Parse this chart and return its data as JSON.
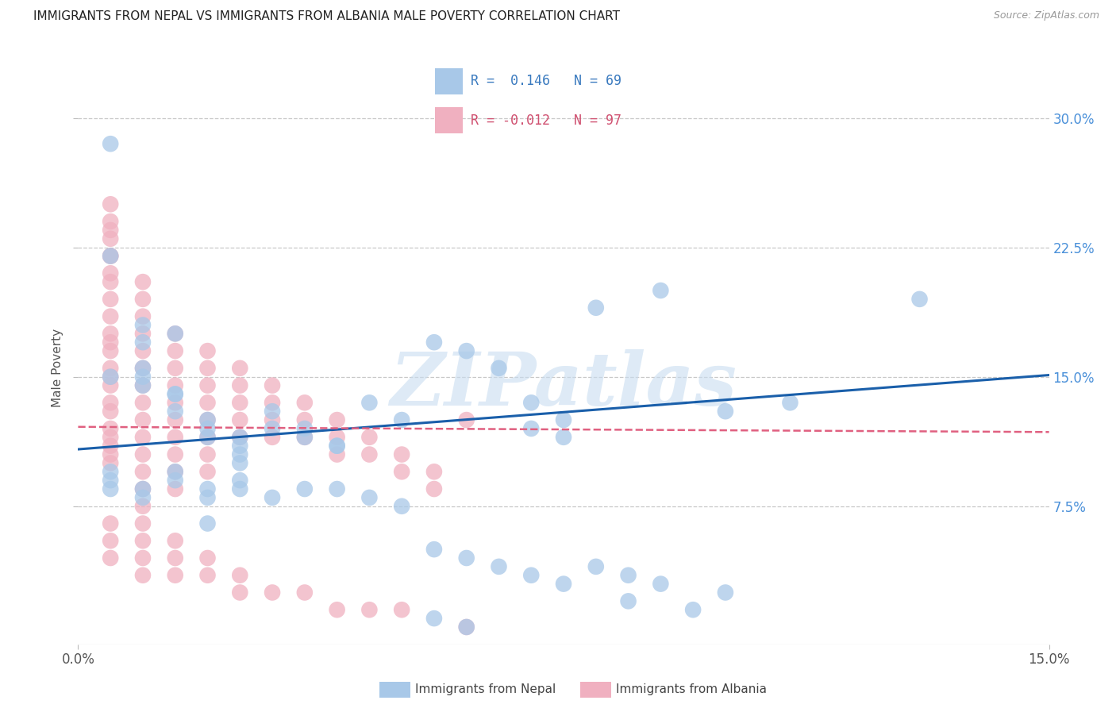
{
  "title": "IMMIGRANTS FROM NEPAL VS IMMIGRANTS FROM ALBANIA MALE POVERTY CORRELATION CHART",
  "source": "Source: ZipAtlas.com",
  "ylabel": "Male Poverty",
  "yticks_labels": [
    "7.5%",
    "15.0%",
    "22.5%",
    "30.0%"
  ],
  "ytick_vals": [
    0.075,
    0.15,
    0.225,
    0.3
  ],
  "xrange": [
    0.0,
    0.15
  ],
  "yrange": [
    -0.005,
    0.315
  ],
  "nepal_color": "#a8c8e8",
  "albania_color": "#f0b0c0",
  "nepal_line_color": "#1a5faa",
  "albania_line_color": "#e06080",
  "nepal_R": 0.146,
  "nepal_N": 69,
  "albania_R": -0.012,
  "albania_N": 97,
  "nepal_line_x0": 0.0,
  "nepal_line_x1": 0.15,
  "nepal_line_y0": 0.108,
  "nepal_line_y1": 0.151,
  "albania_line_x0": 0.0,
  "albania_line_x1": 0.15,
  "albania_line_y0": 0.121,
  "albania_line_y1": 0.118,
  "watermark_text": "ZIPatlas",
  "watermark_color": "#c8ddf0",
  "legend_title_nepal": "R =  0.146   N = 69",
  "legend_title_albania": "R = -0.012   N = 97",
  "bottom_legend_nepal": "Immigrants from Nepal",
  "bottom_legend_albania": "Immigrants from Albania",
  "nepal_x": [
    0.005,
    0.005,
    0.01,
    0.01,
    0.01,
    0.01,
    0.015,
    0.015,
    0.015,
    0.02,
    0.02,
    0.02,
    0.025,
    0.025,
    0.025,
    0.03,
    0.03,
    0.035,
    0.04,
    0.045,
    0.05,
    0.055,
    0.06,
    0.065,
    0.07,
    0.075,
    0.08,
    0.09,
    0.1,
    0.11,
    0.13,
    0.005,
    0.005,
    0.005,
    0.01,
    0.01,
    0.015,
    0.015,
    0.02,
    0.02,
    0.025,
    0.025,
    0.03,
    0.035,
    0.04,
    0.045,
    0.05,
    0.055,
    0.06,
    0.065,
    0.07,
    0.075,
    0.08,
    0.085,
    0.09,
    0.1,
    0.005,
    0.01,
    0.015,
    0.02,
    0.025,
    0.035,
    0.04,
    0.055,
    0.06,
    0.07,
    0.075,
    0.085,
    0.095
  ],
  "nepal_y": [
    0.285,
    0.22,
    0.18,
    0.17,
    0.155,
    0.15,
    0.175,
    0.14,
    0.13,
    0.125,
    0.12,
    0.115,
    0.11,
    0.105,
    0.1,
    0.13,
    0.12,
    0.12,
    0.11,
    0.135,
    0.125,
    0.17,
    0.165,
    0.155,
    0.135,
    0.125,
    0.19,
    0.2,
    0.13,
    0.135,
    0.195,
    0.095,
    0.09,
    0.085,
    0.085,
    0.08,
    0.095,
    0.09,
    0.085,
    0.08,
    0.09,
    0.085,
    0.08,
    0.085,
    0.085,
    0.08,
    0.075,
    0.05,
    0.045,
    0.04,
    0.12,
    0.115,
    0.04,
    0.035,
    0.03,
    0.025,
    0.15,
    0.145,
    0.14,
    0.065,
    0.115,
    0.115,
    0.11,
    0.01,
    0.005,
    0.035,
    0.03,
    0.02,
    0.015
  ],
  "albania_x": [
    0.005,
    0.005,
    0.005,
    0.005,
    0.005,
    0.005,
    0.005,
    0.005,
    0.005,
    0.005,
    0.005,
    0.005,
    0.005,
    0.005,
    0.005,
    0.005,
    0.005,
    0.005,
    0.005,
    0.01,
    0.01,
    0.01,
    0.01,
    0.01,
    0.01,
    0.01,
    0.01,
    0.01,
    0.01,
    0.01,
    0.01,
    0.01,
    0.01,
    0.015,
    0.015,
    0.015,
    0.015,
    0.015,
    0.015,
    0.015,
    0.015,
    0.015,
    0.015,
    0.02,
    0.02,
    0.02,
    0.02,
    0.02,
    0.02,
    0.02,
    0.02,
    0.025,
    0.025,
    0.025,
    0.025,
    0.025,
    0.03,
    0.03,
    0.03,
    0.03,
    0.035,
    0.035,
    0.035,
    0.04,
    0.04,
    0.04,
    0.045,
    0.045,
    0.05,
    0.05,
    0.055,
    0.055,
    0.005,
    0.005,
    0.005,
    0.005,
    0.005,
    0.005,
    0.005,
    0.01,
    0.01,
    0.01,
    0.01,
    0.015,
    0.015,
    0.015,
    0.02,
    0.02,
    0.025,
    0.025,
    0.03,
    0.035,
    0.04,
    0.045,
    0.05,
    0.06,
    0.06
  ],
  "albania_y": [
    0.235,
    0.22,
    0.21,
    0.205,
    0.195,
    0.185,
    0.175,
    0.17,
    0.165,
    0.155,
    0.15,
    0.145,
    0.135,
    0.13,
    0.12,
    0.115,
    0.11,
    0.105,
    0.1,
    0.205,
    0.195,
    0.185,
    0.175,
    0.165,
    0.155,
    0.145,
    0.135,
    0.125,
    0.115,
    0.105,
    0.095,
    0.085,
    0.075,
    0.175,
    0.165,
    0.155,
    0.145,
    0.135,
    0.125,
    0.115,
    0.105,
    0.095,
    0.085,
    0.165,
    0.155,
    0.145,
    0.135,
    0.125,
    0.115,
    0.105,
    0.095,
    0.155,
    0.145,
    0.135,
    0.125,
    0.115,
    0.145,
    0.135,
    0.125,
    0.115,
    0.135,
    0.125,
    0.115,
    0.125,
    0.115,
    0.105,
    0.115,
    0.105,
    0.105,
    0.095,
    0.095,
    0.085,
    0.25,
    0.24,
    0.23,
    0.22,
    0.065,
    0.055,
    0.045,
    0.065,
    0.055,
    0.045,
    0.035,
    0.055,
    0.045,
    0.035,
    0.045,
    0.035,
    0.035,
    0.025,
    0.025,
    0.025,
    0.015,
    0.015,
    0.015,
    0.005,
    0.125
  ]
}
